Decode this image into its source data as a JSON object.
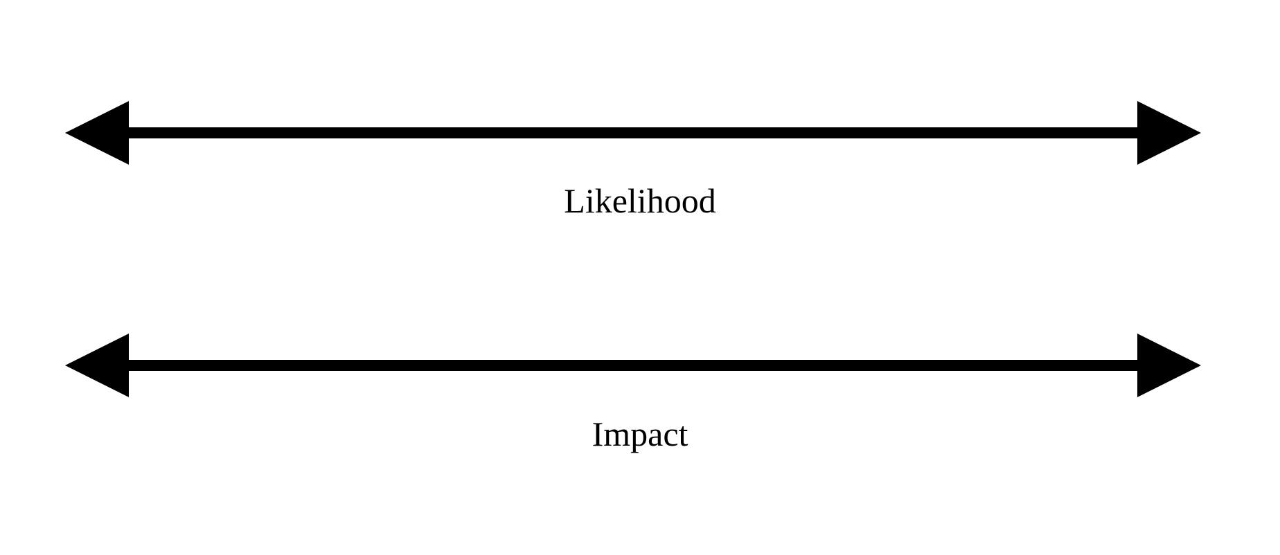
{
  "axes": [
    {
      "label": "Likelihood"
    },
    {
      "label": "Impact"
    }
  ],
  "colors": {
    "stroke": "#000000",
    "background": "#ffffff"
  }
}
